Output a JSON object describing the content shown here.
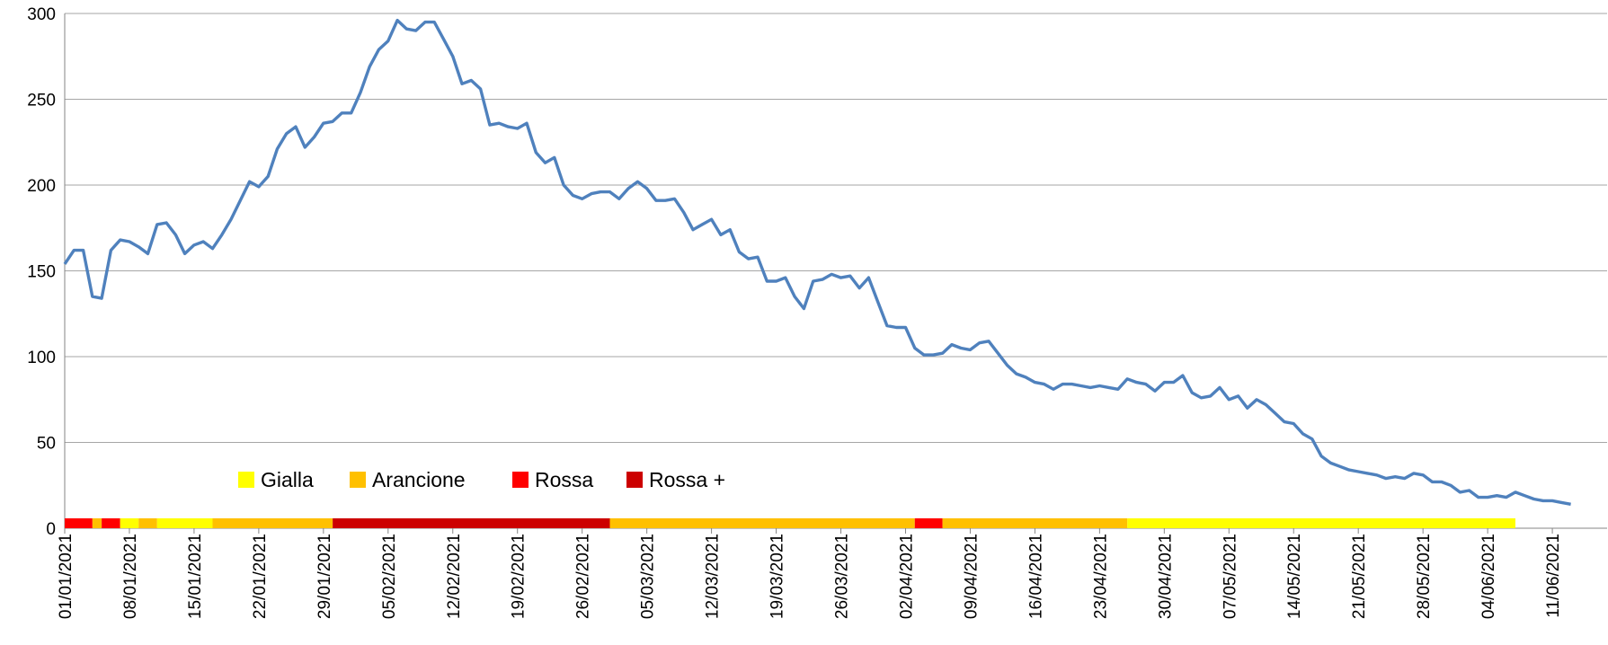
{
  "chart_data": {
    "type": "line",
    "x": [
      "01/01/2021",
      "02/01/2021",
      "03/01/2021",
      "04/01/2021",
      "05/01/2021",
      "06/01/2021",
      "07/01/2021",
      "08/01/2021",
      "09/01/2021",
      "10/01/2021",
      "11/01/2021",
      "12/01/2021",
      "13/01/2021",
      "14/01/2021",
      "15/01/2021",
      "16/01/2021",
      "17/01/2021",
      "18/01/2021",
      "19/01/2021",
      "20/01/2021",
      "21/01/2021",
      "22/01/2021",
      "23/01/2021",
      "24/01/2021",
      "25/01/2021",
      "26/01/2021",
      "27/01/2021",
      "28/01/2021",
      "29/01/2021",
      "30/01/2021",
      "31/01/2021",
      "01/02/2021",
      "02/02/2021",
      "03/02/2021",
      "04/02/2021",
      "05/02/2021",
      "06/02/2021",
      "07/02/2021",
      "08/02/2021",
      "09/02/2021",
      "10/02/2021",
      "11/02/2021",
      "12/02/2021",
      "13/02/2021",
      "14/02/2021",
      "15/02/2021",
      "16/02/2021",
      "17/02/2021",
      "18/02/2021",
      "19/02/2021",
      "20/02/2021",
      "21/02/2021",
      "22/02/2021",
      "23/02/2021",
      "24/02/2021",
      "25/02/2021",
      "26/02/2021",
      "27/02/2021",
      "28/02/2021",
      "01/03/2021",
      "02/03/2021",
      "03/03/2021",
      "04/03/2021",
      "05/03/2021",
      "06/03/2021",
      "07/03/2021",
      "08/03/2021",
      "09/03/2021",
      "10/03/2021",
      "11/03/2021",
      "12/03/2021",
      "13/03/2021",
      "14/03/2021",
      "15/03/2021",
      "16/03/2021",
      "17/03/2021",
      "18/03/2021",
      "19/03/2021",
      "20/03/2021",
      "21/03/2021",
      "22/03/2021",
      "23/03/2021",
      "24/03/2021",
      "25/03/2021",
      "26/03/2021",
      "27/03/2021",
      "28/03/2021",
      "29/03/2021",
      "30/03/2021",
      "31/03/2021",
      "01/04/2021",
      "02/04/2021",
      "03/04/2021",
      "04/04/2021",
      "05/04/2021",
      "06/04/2021",
      "07/04/2021",
      "08/04/2021",
      "09/04/2021",
      "10/04/2021",
      "11/04/2021",
      "12/04/2021",
      "13/04/2021",
      "14/04/2021",
      "15/04/2021",
      "16/04/2021",
      "17/04/2021",
      "18/04/2021",
      "19/04/2021",
      "20/04/2021",
      "21/04/2021",
      "22/04/2021",
      "23/04/2021",
      "24/04/2021",
      "25/04/2021",
      "26/04/2021",
      "27/04/2021",
      "28/04/2021",
      "29/04/2021",
      "30/04/2021",
      "01/05/2021",
      "02/05/2021",
      "03/05/2021",
      "04/05/2021",
      "05/05/2021",
      "06/05/2021",
      "07/05/2021",
      "08/05/2021",
      "09/05/2021",
      "10/05/2021",
      "11/05/2021",
      "12/05/2021",
      "13/05/2021",
      "14/05/2021",
      "15/05/2021",
      "16/05/2021",
      "17/05/2021",
      "18/05/2021",
      "19/05/2021",
      "20/05/2021",
      "21/05/2021",
      "22/05/2021",
      "23/05/2021",
      "24/05/2021",
      "25/05/2021",
      "26/05/2021",
      "27/05/2021",
      "28/05/2021",
      "29/05/2021",
      "30/05/2021",
      "31/05/2021",
      "01/06/2021",
      "02/06/2021",
      "03/06/2021",
      "04/06/2021",
      "05/06/2021",
      "06/06/2021",
      "07/06/2021",
      "08/06/2021",
      "09/06/2021",
      "10/06/2021",
      "11/06/2021",
      "12/06/2021",
      "13/06/2021"
    ],
    "values": [
      154,
      162,
      162,
      135,
      134,
      162,
      168,
      167,
      164,
      160,
      177,
      178,
      171,
      160,
      165,
      167,
      163,
      171,
      180,
      191,
      202,
      199,
      205,
      221,
      230,
      234,
      222,
      228,
      236,
      237,
      242,
      242,
      254,
      269,
      279,
      284,
      296,
      291,
      290,
      295,
      295,
      285,
      275,
      259,
      261,
      256,
      235,
      236,
      234,
      233,
      236,
      219,
      213,
      216,
      200,
      194,
      192,
      195,
      196,
      196,
      192,
      198,
      202,
      198,
      191,
      191,
      192,
      184,
      174,
      177,
      180,
      171,
      174,
      161,
      157,
      158,
      144,
      144,
      146,
      135,
      128,
      144,
      145,
      148,
      146,
      147,
      140,
      146,
      132,
      118,
      117,
      117,
      105,
      101,
      101,
      102,
      107,
      105,
      104,
      108,
      109,
      102,
      95,
      90,
      88,
      85,
      84,
      81,
      84,
      84,
      83,
      82,
      83,
      82,
      81,
      87,
      85,
      84,
      80,
      85,
      85,
      89,
      79,
      76,
      77,
      82,
      75,
      77,
      70,
      75,
      72,
      67,
      62,
      61,
      55,
      52,
      42,
      38,
      36,
      34,
      33,
      32,
      31,
      29,
      30,
      29,
      32,
      31,
      27,
      27,
      25,
      21,
      22,
      18,
      18,
      19,
      18,
      21,
      19,
      17,
      16,
      16,
      15,
      14
    ],
    "color": "#4f81bd",
    "xticks": [
      "01/01/2021",
      "08/01/2021",
      "15/01/2021",
      "22/01/2021",
      "29/01/2021",
      "05/02/2021",
      "12/02/2021",
      "19/02/2021",
      "26/02/2021",
      "05/03/2021",
      "12/03/2021",
      "19/03/2021",
      "26/03/2021",
      "02/04/2021",
      "09/04/2021",
      "16/04/2021",
      "23/04/2021",
      "30/04/2021",
      "07/05/2021",
      "14/05/2021",
      "21/05/2021",
      "28/05/2021",
      "04/06/2021",
      "11/06/2021"
    ],
    "ylim": [
      0,
      300
    ],
    "yticks": [
      0,
      50,
      100,
      150,
      200,
      250,
      300
    ],
    "grid": true,
    "legend": [
      {
        "name": "Gialla",
        "color": "#ffff00"
      },
      {
        "name": "Arancione",
        "color": "#ffc000"
      },
      {
        "name": "Rossa",
        "color": "#ff0000"
      },
      {
        "name": "Rossa +",
        "color": "#cc0000"
      }
    ],
    "zones": [
      {
        "zone": "Rossa",
        "from": "01/01/2021",
        "to": "04/01/2021"
      },
      {
        "zone": "Arancione",
        "from": "04/01/2021",
        "to": "05/01/2021"
      },
      {
        "zone": "Rossa",
        "from": "05/01/2021",
        "to": "07/01/2021"
      },
      {
        "zone": "Gialla",
        "from": "07/01/2021",
        "to": "09/01/2021"
      },
      {
        "zone": "Arancione",
        "from": "09/01/2021",
        "to": "11/01/2021"
      },
      {
        "zone": "Gialla",
        "from": "11/01/2021",
        "to": "17/01/2021"
      },
      {
        "zone": "Arancione",
        "from": "17/01/2021",
        "to": "30/01/2021"
      },
      {
        "zone": "Rossa +",
        "from": "30/01/2021",
        "to": "01/03/2021"
      },
      {
        "zone": "Arancione",
        "from": "01/03/2021",
        "to": "03/04/2021"
      },
      {
        "zone": "Rossa",
        "from": "03/04/2021",
        "to": "06/04/2021"
      },
      {
        "zone": "Arancione",
        "from": "06/04/2021",
        "to": "26/04/2021"
      },
      {
        "zone": "Gialla",
        "from": "26/04/2021",
        "to": "07/06/2021"
      }
    ]
  }
}
